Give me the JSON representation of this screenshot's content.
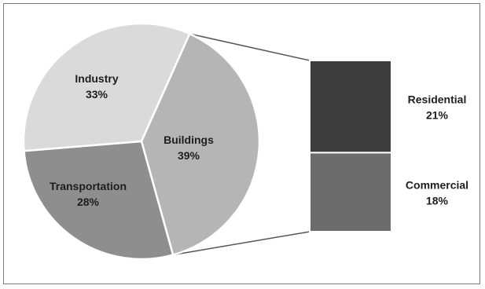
{
  "chart_data": {
    "type": "pie",
    "subtype": "pie-of-bar",
    "slices": [
      {
        "label": "Industry",
        "value": 33,
        "value_text": "33%",
        "color": "#dadada"
      },
      {
        "label": "Buildings",
        "value": 39,
        "value_text": "39%",
        "color": "#b5b5b5"
      },
      {
        "label": "Transportation",
        "value": 28,
        "value_text": "28%",
        "color": "#8e8e8e"
      }
    ],
    "breakdown_of": "Buildings",
    "breakdown": [
      {
        "label": "Residential",
        "value": 21,
        "value_text": "21%",
        "color": "#3c3c3c"
      },
      {
        "label": "Commercial",
        "value": 18,
        "value_text": "18%",
        "color": "#6c6c6c"
      }
    ],
    "title": "",
    "legend": "none"
  }
}
